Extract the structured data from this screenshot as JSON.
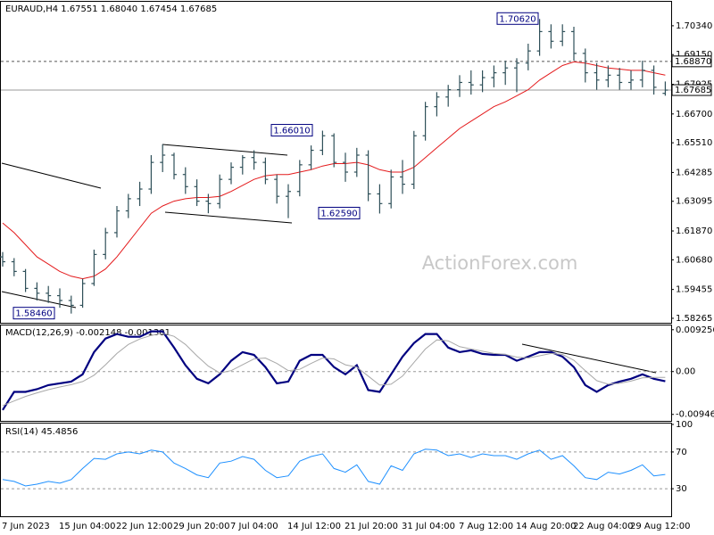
{
  "chart_data": [
    {
      "type": "ohlc",
      "title": "EURAUD,H4  1.67551 1.68040 1.67454 1.67685",
      "watermark": "ActionForex.com",
      "categories": [
        "7 Jun 2023",
        null,
        null,
        null,
        null,
        "15 Jun 04:00",
        null,
        null,
        null,
        null,
        "22 Jun 12:00",
        null,
        null,
        null,
        null,
        "29 Jun 20:00",
        null,
        null,
        null,
        null,
        "7 Jul 04:00",
        null,
        null,
        null,
        null,
        "14 Jul 12:00",
        null,
        null,
        null,
        null,
        "21 Jul 20:00",
        null,
        null,
        null,
        null,
        "31 Jul 04:00",
        null,
        null,
        null,
        null,
        "7 Aug 12:00",
        null,
        null,
        null,
        null,
        "14 Aug 20:00",
        null,
        null,
        null,
        null,
        "22 Aug 04:00",
        null,
        null,
        null,
        null,
        "29 Aug 12:00",
        null,
        null,
        null
      ],
      "color": "#2f5059",
      "open": [
        1.608,
        1.606,
        1.602,
        1.595,
        1.593,
        1.592,
        1.59,
        1.588,
        1.597,
        1.609,
        1.618,
        1.627,
        1.632,
        1.636,
        1.647,
        1.65,
        1.642,
        1.637,
        1.631,
        1.63,
        1.64,
        1.645,
        1.649,
        1.647,
        1.64,
        1.633,
        1.635,
        1.646,
        1.652,
        1.658,
        1.647,
        1.643,
        1.65,
        1.634,
        1.63,
        1.641,
        1.638,
        1.658,
        1.67,
        1.674,
        1.677,
        1.68,
        1.679,
        1.682,
        1.684,
        1.686,
        1.688,
        1.693,
        1.701,
        1.697,
        1.701,
        1.692,
        1.684,
        1.681,
        1.683,
        1.68,
        1.681,
        1.685,
        1.67551
      ],
      "high": [
        1.61,
        1.6075,
        1.603,
        1.5975,
        1.596,
        1.595,
        1.592,
        1.599,
        1.611,
        1.62,
        1.629,
        1.634,
        1.639,
        1.65,
        1.6545,
        1.651,
        1.645,
        1.64,
        1.634,
        1.642,
        1.647,
        1.65,
        1.652,
        1.649,
        1.642,
        1.638,
        1.648,
        1.654,
        1.6601,
        1.659,
        1.651,
        1.653,
        1.652,
        1.638,
        1.644,
        1.648,
        1.66,
        1.672,
        1.676,
        1.679,
        1.683,
        1.685,
        1.685,
        1.687,
        1.689,
        1.69,
        1.696,
        1.7062,
        1.704,
        1.704,
        1.703,
        1.694,
        1.688,
        1.687,
        1.686,
        1.685,
        1.689,
        1.687,
        1.6804
      ],
      "low": [
        1.604,
        1.6,
        1.5935,
        1.59,
        1.589,
        1.587,
        1.5846,
        1.587,
        1.596,
        1.607,
        1.616,
        1.624,
        1.629,
        1.634,
        1.643,
        1.64,
        1.634,
        1.629,
        1.626,
        1.628,
        1.638,
        1.642,
        1.644,
        1.638,
        1.63,
        1.624,
        1.633,
        1.644,
        1.65,
        1.645,
        1.639,
        1.641,
        1.631,
        1.6259,
        1.628,
        1.634,
        1.636,
        1.656,
        1.666,
        1.67,
        1.674,
        1.675,
        1.676,
        1.678,
        1.679,
        1.676,
        1.685,
        1.691,
        1.694,
        1.695,
        1.689,
        1.68,
        1.677,
        1.678,
        1.677,
        1.677,
        1.678,
        1.675,
        1.67454
      ],
      "close": [
        1.606,
        1.602,
        1.595,
        1.593,
        1.592,
        1.59,
        1.588,
        1.597,
        1.609,
        1.618,
        1.627,
        1.632,
        1.636,
        1.647,
        1.65,
        1.642,
        1.637,
        1.631,
        1.63,
        1.64,
        1.645,
        1.649,
        1.647,
        1.64,
        1.633,
        1.635,
        1.646,
        1.652,
        1.658,
        1.647,
        1.643,
        1.65,
        1.634,
        1.63,
        1.641,
        1.638,
        1.658,
        1.67,
        1.674,
        1.677,
        1.68,
        1.679,
        1.682,
        1.684,
        1.686,
        1.688,
        1.693,
        1.701,
        1.697,
        1.701,
        1.692,
        1.684,
        1.681,
        1.683,
        1.68,
        1.681,
        1.685,
        1.678,
        1.67685
      ],
      "ma": {
        "color": "#e41a1c",
        "values": [
          1.622,
          1.618,
          1.613,
          1.608,
          1.605,
          1.602,
          1.6,
          1.599,
          1.6,
          1.603,
          1.608,
          1.614,
          1.62,
          1.626,
          1.629,
          1.631,
          1.632,
          1.6325,
          1.6325,
          1.633,
          1.635,
          1.6375,
          1.64,
          1.6415,
          1.642,
          1.642,
          1.643,
          1.644,
          1.6455,
          1.6465,
          1.6465,
          1.647,
          1.646,
          1.644,
          1.643,
          1.643,
          1.645,
          1.649,
          1.653,
          1.657,
          1.661,
          1.664,
          1.667,
          1.67,
          1.672,
          1.6745,
          1.677,
          1.681,
          1.684,
          1.687,
          1.6885,
          1.688,
          1.687,
          1.686,
          1.6855,
          1.685,
          1.685,
          1.684,
          1.683
        ]
      },
      "ylim": [
        1.5808,
        1.7133
      ],
      "yticks": [
        {
          "value": 1.7034,
          "label": "1.70340"
        },
        {
          "value": 1.6915,
          "label": "1.69150"
        },
        {
          "value": 1.67925,
          "label": "1.67925"
        },
        {
          "value": 1.667,
          "label": "1.66700"
        },
        {
          "value": 1.6551,
          "label": "1.65510"
        },
        {
          "value": 1.64285,
          "label": "1.64285"
        },
        {
          "value": 1.63095,
          "label": "1.63095"
        },
        {
          "value": 1.6187,
          "label": "1.61870"
        },
        {
          "value": 1.6068,
          "label": "1.60680"
        },
        {
          "value": 1.59455,
          "label": "1.59455"
        },
        {
          "value": 1.58265,
          "label": "1.58265"
        }
      ],
      "levels": [
        {
          "value": 1.6887,
          "label": "1.68870",
          "style": "dashed"
        },
        {
          "value": 1.67685,
          "label": "1.67685",
          "style": "solid"
        }
      ],
      "annotations": [
        {
          "value": 1.7062,
          "label": "1.70620"
        },
        {
          "value": 1.6601,
          "label": "1.66010"
        },
        {
          "value": 1.6259,
          "label": "1.62590"
        },
        {
          "value": 1.5846,
          "label": "1.58460"
        }
      ]
    },
    {
      "type": "line",
      "title": "MACD(12,26,9) -0.002148 -0.001301",
      "ylim": [
        -0.0109,
        0.0102
      ],
      "yticks": [
        0.009256,
        {
          "value": 0,
          "label": "0.00"
        },
        -0.009469
      ],
      "series": [
        {
          "color": "#000080",
          "width": 2.2,
          "values": [
            -0.0085,
            -0.0045,
            -0.0045,
            -0.0039,
            -0.003,
            -0.0026,
            -0.0022,
            -0.0006,
            0.0043,
            0.0073,
            0.0083,
            0.0077,
            0.0077,
            0.0089,
            0.0089,
            0.0053,
            0.0014,
            -0.0016,
            -0.0026,
            -0.0006,
            0.0024,
            0.0043,
            0.0037,
            0.001,
            -0.0026,
            -0.0022,
            0.0024,
            0.0037,
            0.0037,
            0.001,
            -0.0006,
            0.0014,
            -0.0041,
            -0.0045,
            -0.0006,
            0.0033,
            0.0063,
            0.0083,
            0.0083,
            0.0053,
            0.0043,
            0.0047,
            0.0039,
            0.0037,
            0.0037,
            0.0024,
            0.0033,
            0.0043,
            0.0043,
            0.0033,
            0.001,
            -0.003,
            -0.0045,
            -0.003,
            -0.0022,
            -0.0016,
            -0.0006,
            -0.0016,
            -0.002148
          ]
        },
        {
          "color": "#a8a8a8",
          "width": 1,
          "values": [
            -0.0075,
            -0.0065,
            -0.0055,
            -0.0047,
            -0.004,
            -0.0034,
            -0.0029,
            -0.0022,
            -0.0008,
            0.0015,
            0.004,
            0.006,
            0.0072,
            0.008,
            0.0085,
            0.0078,
            0.006,
            0.0035,
            0.0012,
            -0.0003,
            0.0002,
            0.0015,
            0.0028,
            0.003,
            0.0018,
            0.0002,
            0.0005,
            0.0018,
            0.003,
            0.0028,
            0.0015,
            0.001,
            -0.001,
            -0.003,
            -0.0028,
            -0.001,
            0.002,
            0.005,
            0.007,
            0.0068,
            0.0055,
            0.005,
            0.0045,
            0.004,
            0.0038,
            0.0032,
            0.003,
            0.0035,
            0.004,
            0.0038,
            0.0025,
            0.0002,
            -0.002,
            -0.0028,
            -0.0026,
            -0.0021,
            -0.0014,
            -0.0013,
            -0.001301
          ]
        }
      ]
    },
    {
      "type": "line",
      "title": "RSI(14) 45.4856",
      "ylim": [
        0,
        100
      ],
      "yticks": [
        100,
        70,
        30
      ],
      "levels": [
        70,
        30
      ],
      "series": [
        {
          "color": "#1e90ff",
          "width": 1,
          "values": [
            40,
            38,
            33,
            35,
            38,
            36,
            40,
            52,
            63,
            62,
            68,
            70,
            68,
            72,
            70,
            58,
            52,
            45,
            42,
            58,
            60,
            65,
            62,
            50,
            42,
            44,
            60,
            65,
            68,
            52,
            48,
            56,
            38,
            35,
            55,
            50,
            68,
            73,
            72,
            66,
            68,
            64,
            68,
            66,
            66,
            62,
            68,
            72,
            62,
            66,
            55,
            42,
            40,
            48,
            46,
            50,
            56,
            44,
            45.4856
          ]
        }
      ]
    }
  ]
}
